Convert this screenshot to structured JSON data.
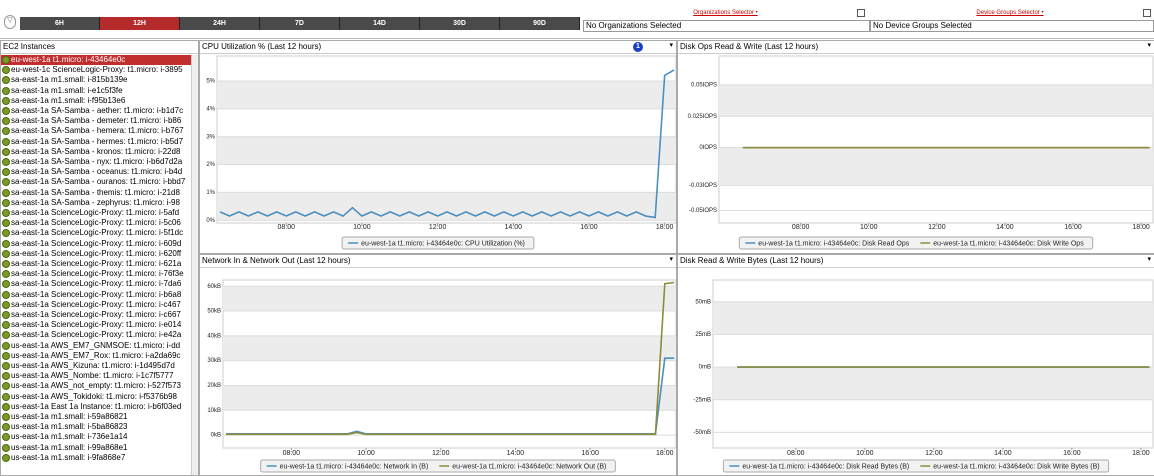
{
  "toolbar": {
    "buttons": [
      "6H",
      "12H",
      "24H",
      "7D",
      "14D",
      "30D",
      "90D"
    ],
    "active_button": 1
  },
  "organizations_selector": {
    "label": "Organizations Selector •",
    "value": "No Organizations Selected"
  },
  "device_groups_selector": {
    "label": "Device Groups Selector •",
    "value": "No Device Groups Selected"
  },
  "instances": {
    "title": "EC2 Instances",
    "selected": 0,
    "items": [
      "eu-west-1a t1.micro: i-43464e0c",
      "eu-west-1c ScienceLogic-Proxy: t1.micro: i-3895",
      "sa-east-1a m1.small: i-815b139e",
      "sa-east-1a m1.small: i-e1c5f3fe",
      "sa-east-1a m1.small: i-f95b13e6",
      "sa-east-1a SA-Samba - aether: t1.micro: i-b1d7c",
      "sa-east-1a SA-Samba - demeter: t1.micro: i-b86",
      "sa-east-1a SA-Samba - hemera: t1.micro: i-b767",
      "sa-east-1a SA-Samba - hermes: t1.micro: i-b5d7",
      "sa-east-1a SA-Samba - kronos: t1.micro: i-22d8",
      "sa-east-1a SA-Samba - nyx: t1.micro: i-b6d7d2a",
      "sa-east-1a SA-Samba - oceanus: t1.micro: i-b4d",
      "sa-east-1a SA-Samba - ouranos: t1.micro: i-bbd7",
      "sa-east-1a SA-Samba - themis: t1.micro: i-21d8",
      "sa-east-1a SA-Samba - zephyrus: t1.micro: i-98",
      "sa-east-1a ScienceLogic-Proxy: t1.micro: i-5afd",
      "sa-east-1a ScienceLogic-Proxy: t1.micro: i-5c06",
      "sa-east-1a ScienceLogic-Proxy: t1.micro: i-5f1dc",
      "sa-east-1a ScienceLogic-Proxy: t1.micro: i-609d",
      "sa-east-1a ScienceLogic-Proxy: t1.micro: i-620ff",
      "sa-east-1a ScienceLogic-Proxy: t1.micro: i-621a",
      "sa-east-1a ScienceLogic-Proxy: t1.micro: i-76f3e",
      "sa-east-1a ScienceLogic-Proxy: t1.micro: i-7da6",
      "sa-east-1a ScienceLogic-Proxy: t1.micro: i-b6a8",
      "sa-east-1a ScienceLogic-Proxy: t1.micro: i-c467",
      "sa-east-1a ScienceLogic-Proxy: t1.micro: i-c667",
      "sa-east-1a ScienceLogic-Proxy: t1.micro: i-e014",
      "sa-east-1a ScienceLogic-Proxy: t1.micro: i-e42a",
      "us-east-1a AWS_EM7_GNMSOE: t1.micro: i-dd",
      "us-east-1a AWS_EM7_Rox: t1.micro: i-a2da69c",
      "us-east-1a AWS_Kizuna: t1.micro: i-1d495d7d",
      "us-east-1a AWS_Nombe: t1.micro: i-1c7f5777",
      "us-east-1a AWS_not_empty: t1.micro: i-527f573",
      "us-east-1a AWS_Tokidoki: t1.micro: i-f5376b98",
      "us-east-1a East 1a Instance: t1.micro: i-b6f03ed",
      "us-east-1a m1.small: i-59a86821",
      "us-east-1a m1.small: i-5ba86823",
      "us-east-1a m1.small: i-736e1a14",
      "us-east-1a m1.small: i-99a868e1",
      "us-east-1a m1.small: i-9fa868e7"
    ]
  },
  "chart_data": [
    {
      "type": "line",
      "title": "CPU Utilization % (Last 12 hours)",
      "badge": "1",
      "x": [
        6.25,
        6.5,
        6.75,
        7,
        7.25,
        7.5,
        7.75,
        8,
        8.25,
        8.5,
        8.75,
        9,
        9.25,
        9.5,
        9.75,
        10,
        10.25,
        10.5,
        10.75,
        11,
        11.25,
        11.5,
        11.75,
        12,
        12.25,
        12.5,
        12.75,
        13,
        13.25,
        13.5,
        13.75,
        14,
        14.25,
        14.5,
        14.75,
        15,
        15.25,
        15.5,
        15.75,
        16,
        16.25,
        16.5,
        16.75,
        17,
        17.25,
        17.5,
        17.75,
        18,
        18.25
      ],
      "xlim": [
        6.17,
        18.3
      ],
      "xticks": [
        {
          "value": 8,
          "label": "08:00"
        },
        {
          "value": 10,
          "label": "10:00"
        },
        {
          "value": 12,
          "label": "12:00"
        },
        {
          "value": 14,
          "label": "14:00"
        },
        {
          "value": 16,
          "label": "16:00"
        },
        {
          "value": 18,
          "label": "18:00"
        }
      ],
      "ylim": [
        -0.1,
        5.9
      ],
      "yticks": [
        {
          "value": 0,
          "label": "0%"
        },
        {
          "value": 1,
          "label": "1%"
        },
        {
          "value": 2,
          "label": "2%"
        },
        {
          "value": 3,
          "label": "3%"
        },
        {
          "value": 4,
          "label": "4%"
        },
        {
          "value": 5,
          "label": "5%"
        }
      ],
      "series": [
        {
          "name": "eu-west-1a t1.micro: i-43464e0c: CPU Utilization (%)",
          "color": "#4a90c0",
          "values": [
            0.3,
            0.15,
            0.3,
            0.15,
            0.3,
            0.15,
            0.3,
            0.15,
            0.3,
            0.15,
            0.3,
            0.15,
            0.3,
            0.15,
            0.45,
            0.15,
            0.3,
            0.15,
            0.3,
            0.15,
            0.3,
            0.15,
            0.3,
            0.15,
            0.3,
            0.15,
            0.3,
            0.15,
            0.3,
            0.15,
            0.3,
            0.15,
            0.3,
            0.15,
            0.3,
            0.15,
            0.3,
            0.15,
            0.3,
            0.15,
            0.3,
            0.15,
            0.3,
            0.15,
            0.3,
            0.15,
            0.1,
            5.2,
            5.4
          ]
        }
      ]
    },
    {
      "type": "line",
      "title": "Disk Ops Read & Write (Last 12 hours)",
      "x": [
        6.3,
        18.25
      ],
      "xlim": [
        5.6,
        18.35
      ],
      "xticks": [
        {
          "value": 8,
          "label": "08:00"
        },
        {
          "value": 10,
          "label": "10:00"
        },
        {
          "value": 12,
          "label": "12:00"
        },
        {
          "value": 14,
          "label": "14:00"
        },
        {
          "value": 16,
          "label": "16:00"
        },
        {
          "value": 18,
          "label": "18:00"
        }
      ],
      "ylim": [
        -0.06,
        0.073
      ],
      "yticks": [
        {
          "value": -0.05,
          "label": "-0.05IOPS"
        },
        {
          "value": -0.03,
          "label": "-0.03IOPS"
        },
        {
          "value": 0,
          "label": "0IOPS"
        },
        {
          "value": 0.025,
          "label": "0.025IOPS"
        },
        {
          "value": 0.05,
          "label": "0.05IOPS"
        }
      ],
      "series": [
        {
          "name": "eu-west-1a t1.micro: i-43464e0c: Disk Read Ops",
          "color": "#4a90c0",
          "values": [
            0,
            0
          ]
        },
        {
          "name": "eu-west-1a t1.micro: i-43464e0c: Disk Write Ops",
          "color": "#8c8c3c",
          "values": [
            0,
            0
          ]
        }
      ]
    },
    {
      "type": "line",
      "title": "Network In & Network Out (Last 12 hours)",
      "x": [
        6.25,
        6.5,
        6.75,
        7,
        7.25,
        7.5,
        7.75,
        8,
        8.25,
        8.5,
        8.75,
        9,
        9.25,
        9.5,
        9.75,
        10,
        10.25,
        10.5,
        10.75,
        11,
        11.25,
        11.5,
        11.75,
        12,
        12.25,
        12.5,
        12.75,
        13,
        13.25,
        13.5,
        13.75,
        14,
        14.25,
        14.5,
        14.75,
        15,
        15.25,
        15.5,
        15.75,
        16,
        16.25,
        16.5,
        16.75,
        17,
        17.25,
        17.5,
        17.75,
        18,
        18.25
      ],
      "xlim": [
        6.17,
        18.3
      ],
      "xticks": [
        {
          "value": 8,
          "label": "08:00"
        },
        {
          "value": 10,
          "label": "10:00"
        },
        {
          "value": 12,
          "label": "12:00"
        },
        {
          "value": 14,
          "label": "14:00"
        },
        {
          "value": 16,
          "label": "16:00"
        },
        {
          "value": 18,
          "label": "18:00"
        }
      ],
      "ylim": [
        -5.2,
        62.5
      ],
      "yticks": [
        {
          "value": 0,
          "label": "0kB"
        },
        {
          "value": 10,
          "label": "10kB"
        },
        {
          "value": 20,
          "label": "20kB"
        },
        {
          "value": 30,
          "label": "30kB"
        },
        {
          "value": 40,
          "label": "40kB"
        },
        {
          "value": 50,
          "label": "50kB"
        },
        {
          "value": 60,
          "label": "60kB"
        }
      ],
      "series": [
        {
          "name": "eu-west-1a t1.micro: i-43464e0c: Network In (B)",
          "color": "#4a90c0",
          "values": [
            0.5,
            0.5,
            0.5,
            0.5,
            0.5,
            0.5,
            0.5,
            0.5,
            0.5,
            0.5,
            0.5,
            0.5,
            0.5,
            0.5,
            1.5,
            0.5,
            0.5,
            0.5,
            0.5,
            0.5,
            0.5,
            0.5,
            0.5,
            0.5,
            0.5,
            0.5,
            0.5,
            0.5,
            0.5,
            0.5,
            0.5,
            0.5,
            0.5,
            0.5,
            0.5,
            0.5,
            0.5,
            0.5,
            0.5,
            0.5,
            0.5,
            0.5,
            0.5,
            0.5,
            0.5,
            0.5,
            0.5,
            31,
            31
          ]
        },
        {
          "name": "eu-west-1a t1.micro: i-43464e0c: Network Out (B)",
          "color": "#8c8c3c",
          "values": [
            0.3,
            0.3,
            0.3,
            0.3,
            0.3,
            0.3,
            0.3,
            0.3,
            0.3,
            0.3,
            0.3,
            0.3,
            0.3,
            0.3,
            1,
            0.3,
            0.3,
            0.3,
            0.3,
            0.3,
            0.3,
            0.3,
            0.3,
            0.3,
            0.3,
            0.3,
            0.3,
            0.3,
            0.3,
            0.3,
            0.3,
            0.3,
            0.3,
            0.3,
            0.3,
            0.3,
            0.3,
            0.3,
            0.3,
            0.3,
            0.3,
            0.3,
            0.3,
            0.3,
            0.3,
            0.3,
            0.3,
            61,
            61.5
          ]
        }
      ]
    },
    {
      "type": "line",
      "title": "Disk Read & Write Bytes (Last 12 hours)",
      "x": [
        6.3,
        18.25
      ],
      "xlim": [
        5.6,
        18.35
      ],
      "xticks": [
        {
          "value": 8,
          "label": "08:00"
        },
        {
          "value": 10,
          "label": "10:00"
        },
        {
          "value": 12,
          "label": "12:00"
        },
        {
          "value": 14,
          "label": "14:00"
        },
        {
          "value": 16,
          "label": "16:00"
        },
        {
          "value": 18,
          "label": "18:00"
        }
      ],
      "ylim": [
        -62,
        66.7
      ],
      "yticks": [
        {
          "value": -50,
          "label": "-50mB"
        },
        {
          "value": -25,
          "label": "-25mB"
        },
        {
          "value": 0,
          "label": "0mB"
        },
        {
          "value": 25,
          "label": "25mB"
        },
        {
          "value": 50,
          "label": "50mB"
        }
      ],
      "series": [
        {
          "name": "eu-west-1a t1.micro: i-43464e0c: Disk Read Bytes (B)",
          "color": "#4a90c0",
          "values": [
            0,
            0
          ]
        },
        {
          "name": "eu-west-1a t1.micro: i-43464e0c: Disk Write Bytes (B)",
          "color": "#8c8c3c",
          "values": [
            0,
            0
          ]
        }
      ]
    }
  ]
}
